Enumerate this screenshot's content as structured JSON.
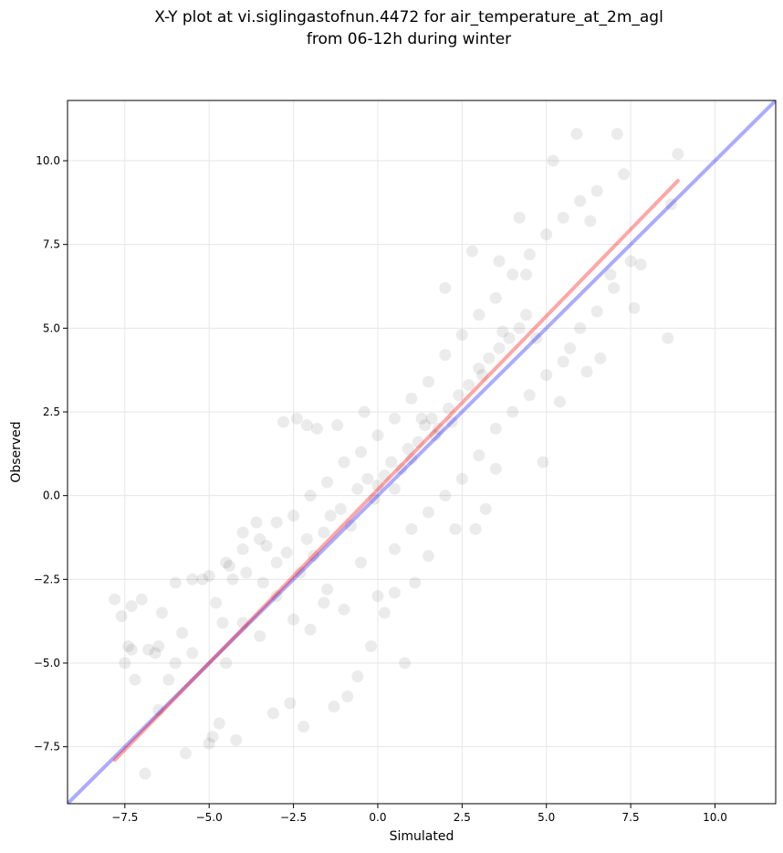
{
  "chart_data": {
    "type": "scatter",
    "title": "X-Y plot at vi.siglingastofnun.4472 for air_temperature_at_2m_agl",
    "subtitle": "from 06-12h during winter",
    "xlabel": "Simulated",
    "ylabel": "Observed",
    "xlim": [
      -9.2,
      11.8
    ],
    "ylim": [
      -9.2,
      11.8
    ],
    "xticks": [
      -7.5,
      -5.0,
      -2.5,
      0.0,
      2.5,
      5.0,
      7.5,
      10.0
    ],
    "yticks": [
      -7.5,
      -5.0,
      -2.5,
      0.0,
      2.5,
      5.0,
      7.5,
      10.0
    ],
    "xtick_labels": [
      "−7.5",
      "−5.0",
      "−2.5",
      "0.0",
      "2.5",
      "5.0",
      "7.5",
      "10.0"
    ],
    "ytick_labels": [
      "−7.5",
      "−5.0",
      "−2.5",
      "0.0",
      "2.5",
      "5.0",
      "7.5",
      "10.0"
    ],
    "grid": true,
    "point_color": "#000000",
    "point_opacity": 0.08,
    "lines": [
      {
        "role": "identity",
        "color": "#0000ff",
        "opacity": 0.33,
        "x": [
          -9.2,
          11.8
        ],
        "y": [
          -9.2,
          11.8
        ]
      },
      {
        "role": "fit",
        "color": "#ff0000",
        "opacity": 0.35,
        "x": [
          -7.8,
          8.9
        ],
        "y": [
          -7.9,
          9.4
        ]
      }
    ],
    "points": [
      [
        -7.8,
        -3.1
      ],
      [
        -7.6,
        -3.6
      ],
      [
        -7.4,
        -4.5
      ],
      [
        -7.3,
        -3.3
      ],
      [
        -7.2,
        -5.5
      ],
      [
        -7.5,
        -5.0
      ],
      [
        -7.3,
        -4.6
      ],
      [
        -7.0,
        -3.1
      ],
      [
        -6.8,
        -4.6
      ],
      [
        -6.9,
        -8.3
      ],
      [
        -6.6,
        -4.7
      ],
      [
        -6.4,
        -3.5
      ],
      [
        -6.5,
        -6.4
      ],
      [
        -6.2,
        -5.5
      ],
      [
        -6.0,
        -2.6
      ],
      [
        -5.8,
        -4.1
      ],
      [
        -5.5,
        -2.5
      ],
      [
        -5.7,
        -7.7
      ],
      [
        -5.2,
        -2.5
      ],
      [
        -5.0,
        -7.4
      ],
      [
        -4.9,
        -7.2
      ],
      [
        -4.7,
        -6.8
      ],
      [
        -4.6,
        -3.8
      ],
      [
        -4.4,
        -2.1
      ],
      [
        -4.2,
        -7.3
      ],
      [
        -4.0,
        -1.1
      ],
      [
        -3.6,
        -0.8
      ],
      [
        -3.3,
        -1.5
      ],
      [
        -3.1,
        -6.5
      ],
      [
        -2.8,
        2.2
      ],
      [
        -2.6,
        -6.2
      ],
      [
        -2.4,
        2.3
      ],
      [
        -2.2,
        -6.9
      ],
      [
        -2.1,
        2.1
      ],
      [
        -1.8,
        2.0
      ],
      [
        -1.6,
        -3.2
      ],
      [
        -1.3,
        -6.3
      ],
      [
        -1.2,
        2.1
      ],
      [
        -0.9,
        -6.0
      ],
      [
        -0.6,
        -5.4
      ],
      [
        -0.4,
        2.5
      ],
      [
        -0.2,
        -4.5
      ],
      [
        0.2,
        -3.5
      ],
      [
        0.5,
        -2.9
      ],
      [
        0.8,
        -5.0
      ],
      [
        1.1,
        -2.6
      ],
      [
        1.5,
        -1.8
      ],
      [
        2.0,
        6.2
      ],
      [
        2.3,
        -1.0
      ],
      [
        2.8,
        7.3
      ],
      [
        2.9,
        -1.0
      ],
      [
        3.2,
        -0.4
      ],
      [
        3.5,
        0.8
      ],
      [
        3.6,
        7.0
      ],
      [
        4.2,
        8.3
      ],
      [
        4.4,
        6.6
      ],
      [
        4.7,
        4.7
      ],
      [
        4.9,
        1.0
      ],
      [
        5.2,
        10.0
      ],
      [
        5.4,
        2.8
      ],
      [
        5.7,
        4.4
      ],
      [
        5.9,
        10.8
      ],
      [
        6.2,
        3.7
      ],
      [
        6.3,
        8.2
      ],
      [
        6.6,
        4.1
      ],
      [
        6.9,
        6.6
      ],
      [
        7.1,
        10.8
      ],
      [
        7.3,
        9.6
      ],
      [
        7.6,
        5.6
      ],
      [
        7.8,
        6.9
      ],
      [
        8.6,
        4.7
      ],
      [
        8.7,
        8.7
      ],
      [
        8.9,
        10.2
      ],
      [
        -6.5,
        -4.5
      ],
      [
        -6.0,
        -5.0
      ],
      [
        -5.5,
        -4.7
      ],
      [
        -4.8,
        -3.2
      ],
      [
        -4.5,
        -5.0
      ],
      [
        -4.0,
        -3.8
      ],
      [
        -3.5,
        -4.2
      ],
      [
        -3.0,
        -3.0
      ],
      [
        -2.5,
        -3.7
      ],
      [
        -2.0,
        -4.0
      ],
      [
        -1.5,
        -2.8
      ],
      [
        -1.0,
        -3.4
      ],
      [
        -0.5,
        -2.0
      ],
      [
        0.0,
        -3.0
      ],
      [
        0.5,
        -1.6
      ],
      [
        1.0,
        -1.0
      ],
      [
        1.5,
        -0.5
      ],
      [
        2.0,
        0.0
      ],
      [
        2.5,
        0.5
      ],
      [
        3.0,
        1.2
      ],
      [
        3.5,
        2.0
      ],
      [
        4.0,
        2.5
      ],
      [
        4.5,
        3.0
      ],
      [
        5.0,
        3.6
      ],
      [
        5.5,
        4.0
      ],
      [
        6.0,
        5.0
      ],
      [
        6.5,
        5.5
      ],
      [
        7.0,
        6.2
      ],
      [
        7.5,
        7.0
      ],
      [
        -5.0,
        -2.4
      ],
      [
        -4.5,
        -2.0
      ],
      [
        -4.0,
        -1.6
      ],
      [
        -3.5,
        -1.3
      ],
      [
        -3.0,
        -0.8
      ],
      [
        -2.5,
        -0.6
      ],
      [
        -2.0,
        0.0
      ],
      [
        -1.5,
        0.4
      ],
      [
        -1.0,
        1.0
      ],
      [
        -0.5,
        1.3
      ],
      [
        0.0,
        1.8
      ],
      [
        0.5,
        2.3
      ],
      [
        1.0,
        2.9
      ],
      [
        1.5,
        3.4
      ],
      [
        2.0,
        4.2
      ],
      [
        2.5,
        4.8
      ],
      [
        3.0,
        5.4
      ],
      [
        3.5,
        5.9
      ],
      [
        4.0,
        6.6
      ],
      [
        4.5,
        7.2
      ],
      [
        5.0,
        7.8
      ],
      [
        5.5,
        8.3
      ],
      [
        6.0,
        8.8
      ],
      [
        6.5,
        9.1
      ],
      [
        -4.3,
        -2.5
      ],
      [
        -3.9,
        -2.3
      ],
      [
        -3.4,
        -2.6
      ],
      [
        -3.0,
        -2.0
      ],
      [
        -2.7,
        -1.7
      ],
      [
        -2.3,
        -2.3
      ],
      [
        -2.1,
        -1.3
      ],
      [
        -1.9,
        -1.8
      ],
      [
        -1.6,
        -1.1
      ],
      [
        -1.4,
        -0.6
      ],
      [
        -1.1,
        -0.4
      ],
      [
        -0.8,
        -0.9
      ],
      [
        -0.6,
        0.2
      ],
      [
        -0.3,
        0.5
      ],
      [
        -0.1,
        -0.1
      ],
      [
        0.2,
        0.6
      ],
      [
        0.4,
        1.0
      ],
      [
        0.7,
        0.8
      ],
      [
        0.9,
        1.4
      ],
      [
        1.2,
        1.6
      ],
      [
        1.4,
        2.1
      ],
      [
        1.6,
        2.3
      ],
      [
        1.8,
        2.0
      ],
      [
        2.1,
        2.6
      ],
      [
        2.4,
        3.0
      ],
      [
        2.7,
        3.3
      ],
      [
        3.0,
        3.8
      ],
      [
        3.3,
        4.1
      ],
      [
        3.6,
        4.4
      ],
      [
        3.9,
        4.7
      ],
      [
        4.2,
        5.0
      ],
      [
        4.4,
        5.4
      ],
      [
        3.7,
        4.9
      ],
      [
        3.1,
        3.6
      ],
      [
        2.2,
        2.2
      ],
      [
        1.3,
        2.3
      ],
      [
        1.7,
        1.8
      ],
      [
        1.0,
        1.1
      ],
      [
        0.5,
        0.2
      ],
      [
        0.0,
        0.3
      ]
    ]
  }
}
